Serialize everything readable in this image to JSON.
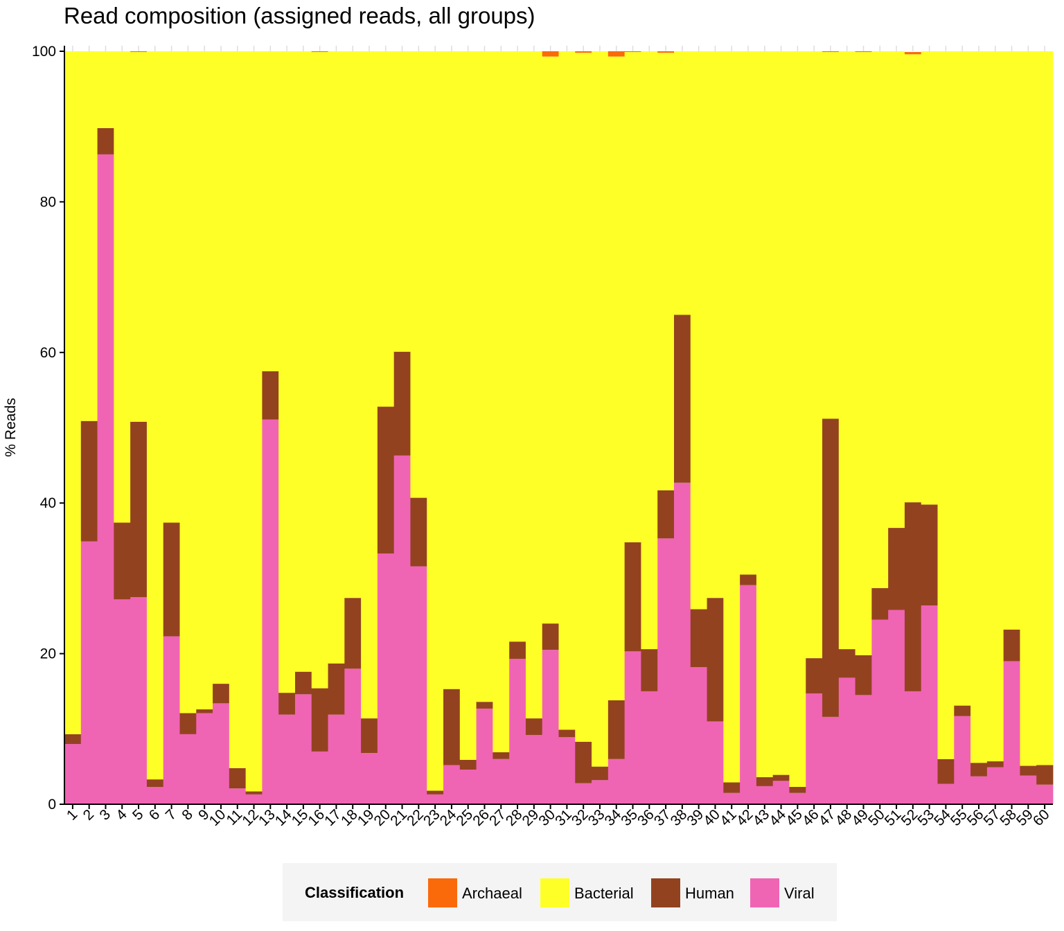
{
  "chart_data": {
    "type": "bar",
    "stacked": true,
    "title": "Read composition (assigned reads, all groups)",
    "xlabel": "",
    "ylabel": "% Reads",
    "ylim": [
      0,
      100
    ],
    "yticks": [
      0,
      20,
      40,
      60,
      80,
      100
    ],
    "grid": false,
    "legend_position": "bottom",
    "legend_title": "Classification",
    "categories": [
      "1",
      "2",
      "3",
      "4",
      "5",
      "6",
      "7",
      "8",
      "9",
      "10",
      "11",
      "12",
      "13",
      "14",
      "15",
      "16",
      "17",
      "18",
      "19",
      "20",
      "21",
      "22",
      "23",
      "24",
      "25",
      "26",
      "27",
      "28",
      "29",
      "30",
      "31",
      "32",
      "33",
      "34",
      "35",
      "36",
      "37",
      "38",
      "39",
      "40",
      "41",
      "42",
      "43",
      "44",
      "45",
      "46",
      "47",
      "48",
      "49",
      "50",
      "51",
      "52",
      "53",
      "54",
      "55",
      "56",
      "57",
      "58",
      "59",
      "60"
    ],
    "series": [
      {
        "name": "Viral",
        "color": "#F064B4",
        "values": [
          8.0,
          34.9,
          86.3,
          27.2,
          27.5,
          2.3,
          22.3,
          9.3,
          12.1,
          13.4,
          2.1,
          1.3,
          51.1,
          11.9,
          14.6,
          7.0,
          11.9,
          18.0,
          6.8,
          33.3,
          46.3,
          31.6,
          1.3,
          5.2,
          4.6,
          12.7,
          6.0,
          19.3,
          9.2,
          20.5,
          8.9,
          2.8,
          3.2,
          6.0,
          20.3,
          15.0,
          35.3,
          42.7,
          18.2,
          11.0,
          1.5,
          29.1,
          2.4,
          3.1,
          1.5,
          14.7,
          11.6,
          16.8,
          14.5,
          24.5,
          25.8,
          15.0,
          26.4,
          2.7,
          11.7,
          3.7,
          4.9,
          19.0,
          3.8,
          2.6
        ]
      },
      {
        "name": "Human",
        "color": "#934220",
        "values": [
          1.3,
          16.0,
          3.5,
          10.2,
          23.3,
          1.0,
          15.1,
          2.8,
          0.5,
          2.6,
          2.7,
          0.4,
          6.4,
          2.9,
          3.0,
          8.4,
          6.8,
          9.4,
          4.6,
          19.5,
          13.8,
          9.1,
          0.5,
          10.1,
          1.3,
          0.9,
          0.9,
          2.3,
          2.2,
          3.5,
          1.0,
          5.5,
          1.8,
          7.8,
          14.5,
          5.6,
          6.4,
          22.3,
          7.7,
          16.4,
          1.4,
          1.4,
          1.2,
          0.8,
          0.8,
          4.7,
          39.6,
          3.8,
          5.3,
          4.2,
          10.9,
          25.1,
          13.4,
          3.3,
          1.4,
          1.8,
          0.8,
          4.2,
          1.3,
          2.6
        ]
      },
      {
        "name": "Bacterial",
        "color": "#FFFF28",
        "values": [
          90.7,
          49.1,
          10.2,
          62.6,
          49.1,
          96.7,
          62.6,
          87.9,
          87.4,
          84.0,
          95.2,
          98.3,
          42.5,
          85.2,
          82.4,
          84.5,
          81.3,
          72.6,
          88.6,
          47.2,
          39.9,
          59.3,
          98.2,
          84.7,
          94.1,
          86.4,
          93.1,
          78.4,
          88.6,
          75.3,
          90.1,
          91.5,
          95.0,
          85.5,
          65.1,
          79.4,
          58.1,
          35.0,
          74.1,
          72.6,
          97.1,
          69.5,
          96.4,
          96.1,
          97.7,
          80.6,
          48.7,
          79.4,
          80.1,
          71.3,
          63.3,
          59.5,
          60.2,
          94.0,
          86.9,
          94.5,
          94.3,
          76.8,
          94.9,
          94.8
        ]
      },
      {
        "name": "Archaeal",
        "color": "#FA6A0A",
        "values": [
          0,
          0.1,
          0,
          0.1,
          0.1,
          0,
          0,
          0.1,
          0,
          0,
          0,
          0.1,
          0.1,
          0.1,
          0,
          0.1,
          0,
          0,
          0.1,
          0.1,
          0,
          0.1,
          0,
          0,
          0,
          0,
          0,
          0.1,
          0,
          0.7,
          0,
          0.2,
          0,
          0.7,
          0.1,
          0,
          0.3,
          0.1,
          0.1,
          0.1,
          0,
          0,
          0,
          0,
          0,
          0,
          0.1,
          0,
          0.1,
          0,
          0,
          0.3,
          0.1,
          0,
          0,
          0,
          0,
          0,
          0,
          0
        ]
      }
    ],
    "legend_order": [
      "Archaeal",
      "Bacterial",
      "Human",
      "Viral"
    ]
  }
}
